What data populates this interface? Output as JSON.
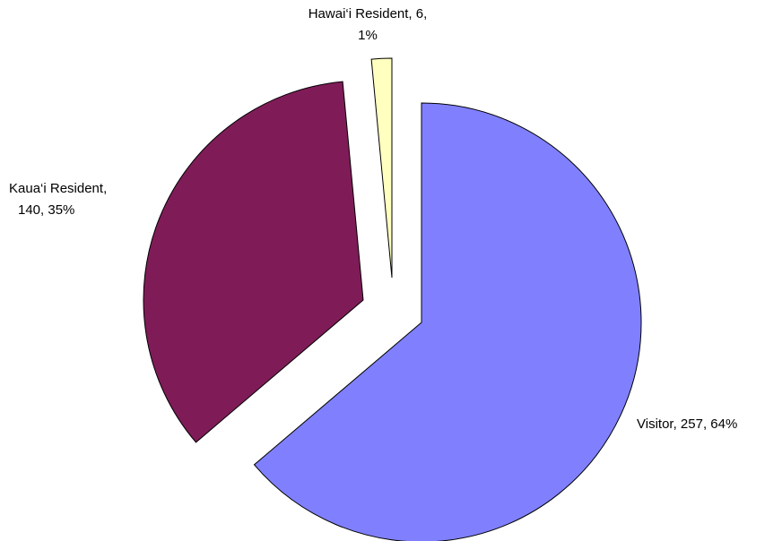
{
  "chart_data": {
    "type": "pie",
    "values": [
      257,
      140,
      6
    ],
    "value_labels": [
      [
        "Visitor, 257, 64%"
      ],
      [
        "Kaua‘i Resident,",
        "140, 35%"
      ],
      [
        "Hawai‘i Resident, 6,",
        "1%"
      ]
    ],
    "colors": [
      "#8080ff",
      "#7f1c58",
      "#ffffc0"
    ]
  }
}
